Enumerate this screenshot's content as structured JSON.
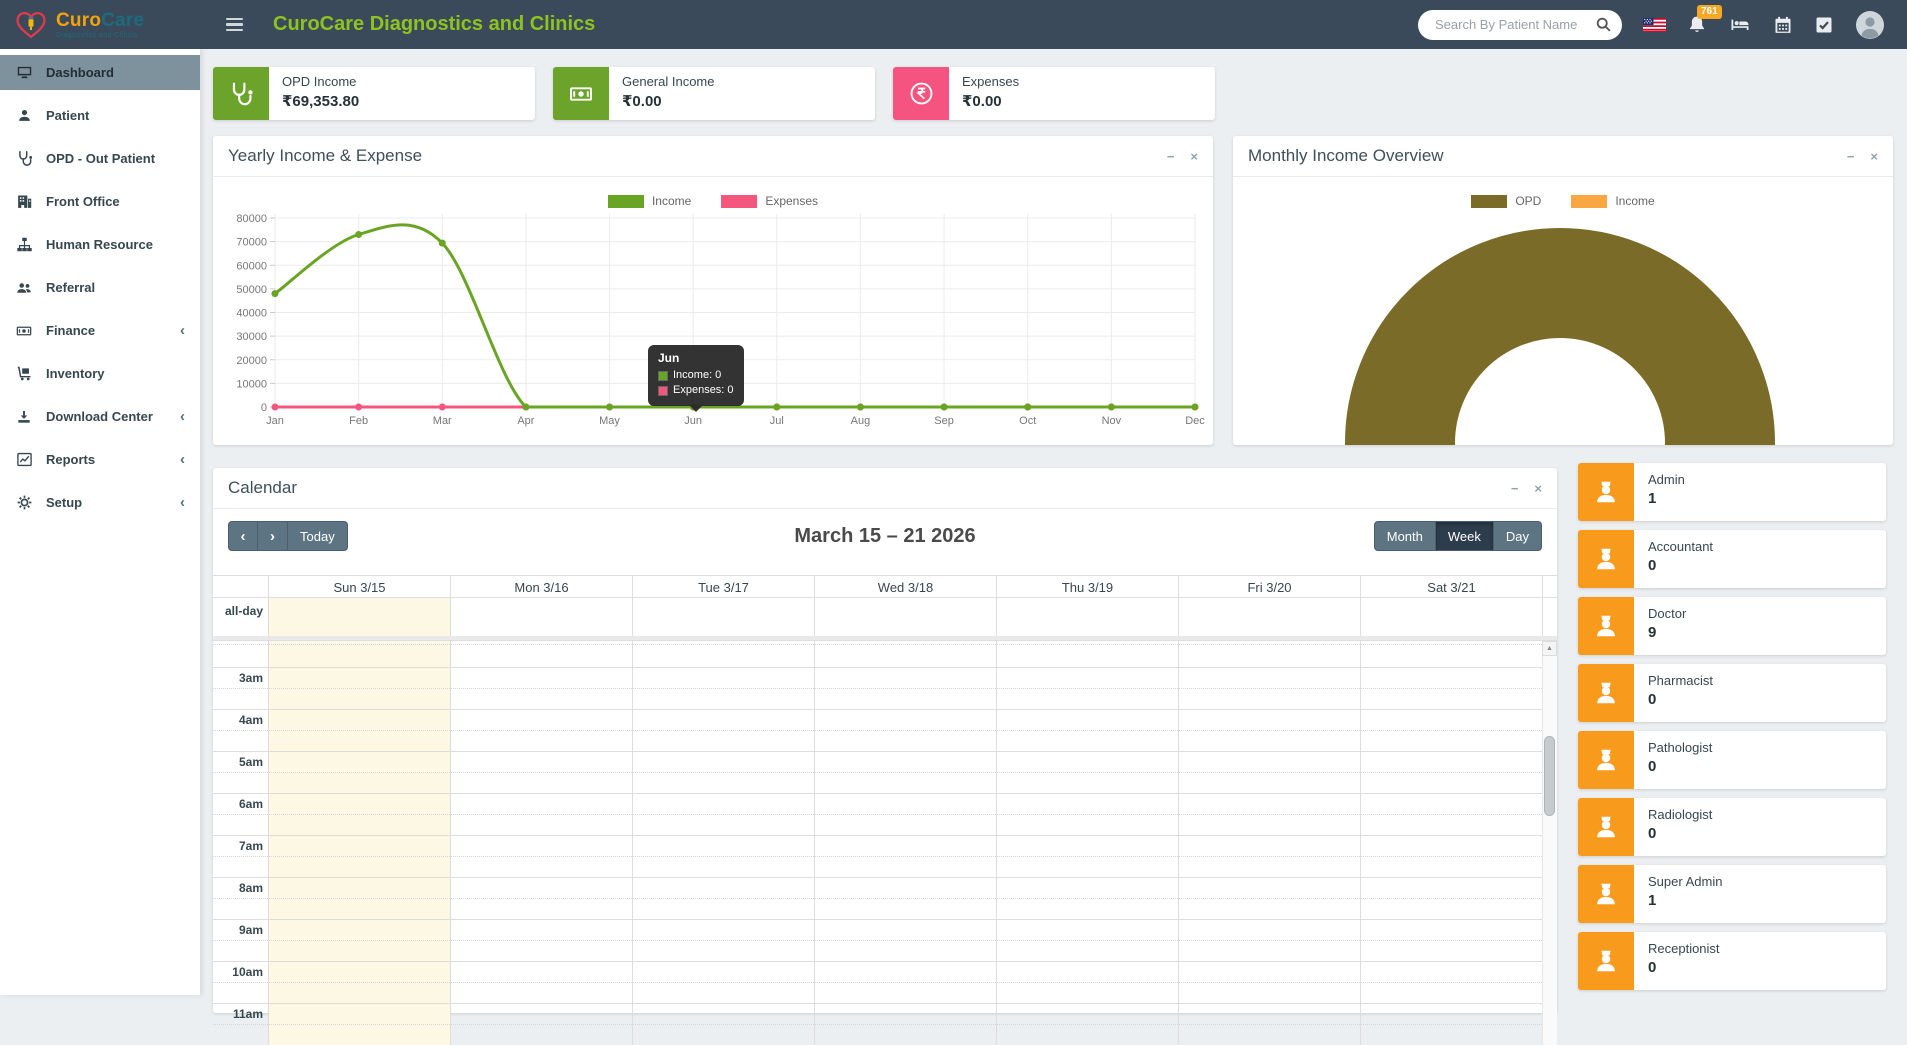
{
  "navbar": {
    "logo": {
      "brand_curo": "Curo",
      "brand_care": "Care",
      "subtitle": "Diagnostics and Clinics"
    },
    "title": "CuroCare Diagnostics and Clinics",
    "search_placeholder": "Search By Patient Name",
    "notification_count": "761"
  },
  "panel_controls": {
    "minimize": "−",
    "close": "×"
  },
  "sidebar": {
    "items": [
      {
        "label": "Dashboard",
        "icon": "monitor-icon",
        "active": true,
        "chevron": false
      },
      {
        "label": "Patient",
        "icon": "patient-icon",
        "active": false,
        "chevron": false
      },
      {
        "label": "OPD - Out Patient",
        "icon": "stethoscope-icon",
        "active": false,
        "chevron": false
      },
      {
        "label": "Front Office",
        "icon": "front-office-icon",
        "active": false,
        "chevron": false
      },
      {
        "label": "Human Resource",
        "icon": "sitemap-icon",
        "active": false,
        "chevron": false
      },
      {
        "label": "Referral",
        "icon": "users-icon",
        "active": false,
        "chevron": false
      },
      {
        "label": "Finance",
        "icon": "money-icon",
        "active": false,
        "chevron": true
      },
      {
        "label": "Inventory",
        "icon": "trolley-icon",
        "active": false,
        "chevron": false
      },
      {
        "label": "Download Center",
        "icon": "download-icon",
        "active": false,
        "chevron": true
      },
      {
        "label": "Reports",
        "icon": "chart-line-icon",
        "active": false,
        "chevron": true
      },
      {
        "label": "Setup",
        "icon": "gear-icon",
        "active": false,
        "chevron": true
      }
    ]
  },
  "stat_cards": [
    {
      "label": "OPD Income",
      "value": "₹69,353.80",
      "color": "#6ca42b",
      "icon": "stethoscope-white-icon"
    },
    {
      "label": "General Income",
      "value": "₹0.00",
      "color": "#6ca42b",
      "icon": "money-white-icon"
    },
    {
      "label": "Expenses",
      "value": "₹0.00",
      "color": "#f4547f",
      "icon": "rupee-ban-icon"
    }
  ],
  "yearly_panel": {
    "title": "Yearly Income & Expense",
    "chart_data": {
      "type": "line",
      "categories": [
        "Jan",
        "Feb",
        "Mar",
        "Apr",
        "May",
        "Jun",
        "Jul",
        "Aug",
        "Sep",
        "Oct",
        "Nov",
        "Dec"
      ],
      "series": [
        {
          "name": "Income",
          "color": "#6aa424",
          "values": [
            48000,
            73000,
            69353.8,
            0,
            0,
            0,
            0,
            0,
            0,
            0,
            0,
            0
          ]
        },
        {
          "name": "Expenses",
          "color": "#f4567e",
          "values": [
            0,
            0,
            0,
            0,
            0,
            0,
            0,
            0,
            0,
            0,
            0,
            0
          ]
        }
      ],
      "ylim": [
        0,
        80000
      ],
      "ytick_step": 10000,
      "grid": true,
      "legend_position": "top"
    },
    "tooltip": {
      "title": "Jun",
      "rows": [
        {
          "label": "Income: 0",
          "color": "#6aa424"
        },
        {
          "label": "Expenses: 0",
          "color": "#f4567e"
        }
      ]
    }
  },
  "monthly_panel": {
    "title": "Monthly Income Overview",
    "chart_data": {
      "type": "donut",
      "series": [
        {
          "name": "OPD",
          "value": 69353.8,
          "color": "#7a6b28"
        },
        {
          "name": "Income",
          "value": 0,
          "color": "#f9a743"
        }
      ]
    }
  },
  "calendar": {
    "title": "Calendar",
    "toolbar": {
      "prev": "‹",
      "next": "›",
      "today": "Today",
      "title": "March 15 – 21 2026",
      "views": [
        "Month",
        "Week",
        "Day"
      ],
      "active_view": "Week"
    },
    "all_day_label": "all-day",
    "day_headers": [
      "Sun 3/15",
      "Mon 3/16",
      "Tue 3/17",
      "Wed 3/18",
      "Thu 3/19",
      "Fri 3/20",
      "Sat 3/21"
    ],
    "highlighted_day": "Sun 3/15",
    "hours": [
      "3am",
      "4am",
      "5am",
      "6am",
      "7am",
      "8am",
      "9am",
      "10am",
      "11am"
    ]
  },
  "roles": [
    {
      "label": "Admin",
      "count": "1"
    },
    {
      "label": "Accountant",
      "count": "0"
    },
    {
      "label": "Doctor",
      "count": "9"
    },
    {
      "label": "Pharmacist",
      "count": "0"
    },
    {
      "label": "Pathologist",
      "count": "0"
    },
    {
      "label": "Radiologist",
      "count": "0"
    },
    {
      "label": "Super Admin",
      "count": "1"
    },
    {
      "label": "Receptionist",
      "count": "0"
    }
  ]
}
